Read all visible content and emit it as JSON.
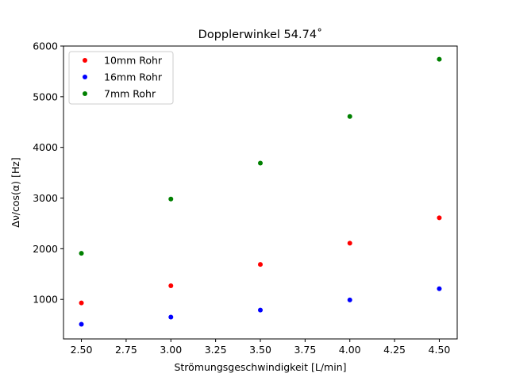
{
  "chart_data": {
    "type": "scatter",
    "title": "Dopplerwinkel 54.74˚",
    "xlabel": "Strömungsgeschwindigkeit [L/min]",
    "ylabel": "Δν/cos(α) [Hz]",
    "xlim": [
      2.4,
      4.6
    ],
    "ylim": [
      220,
      6000
    ],
    "xticks": [
      2.5,
      2.75,
      3.0,
      3.25,
      3.5,
      3.75,
      4.0,
      4.25,
      4.5
    ],
    "xtick_labels": [
      "2.50",
      "2.75",
      "3.00",
      "3.25",
      "3.50",
      "3.75",
      "4.00",
      "4.25",
      "4.50"
    ],
    "yticks": [
      1000,
      2000,
      3000,
      4000,
      5000,
      6000
    ],
    "ytick_labels": [
      "1000",
      "2000",
      "3000",
      "4000",
      "5000",
      "6000"
    ],
    "grid": false,
    "legend_position": "top-left",
    "series": [
      {
        "name": "10mm Rohr",
        "color": "#ff0000",
        "x": [
          2.5,
          3.0,
          3.5,
          4.0,
          4.5
        ],
        "y": [
          930,
          1270,
          1690,
          2110,
          2610
        ]
      },
      {
        "name": "16mm Rohr",
        "color": "#0000ff",
        "x": [
          2.5,
          3.0,
          3.5,
          4.0,
          4.5
        ],
        "y": [
          510,
          650,
          790,
          990,
          1210
        ]
      },
      {
        "name": "7mm Rohr",
        "color": "#008000",
        "x": [
          2.5,
          3.0,
          3.5,
          4.0,
          4.5
        ],
        "y": [
          1910,
          2980,
          3690,
          4610,
          5740
        ]
      }
    ]
  }
}
